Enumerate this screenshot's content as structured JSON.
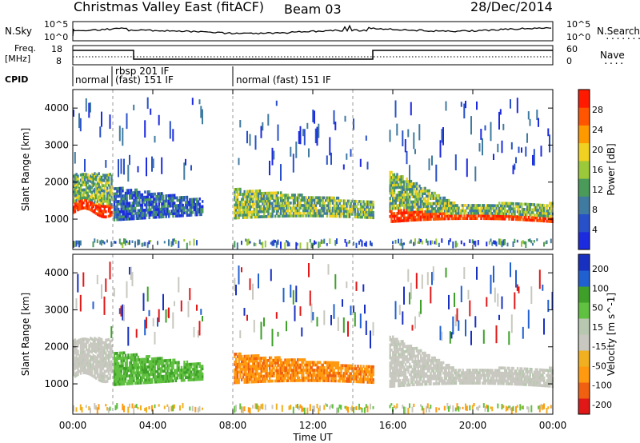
{
  "header": {
    "title": "Christmas Valley East (fitACF)",
    "beam": "Beam 03",
    "date": "28/Dec/2014"
  },
  "colors": {
    "power_scale": [
      "#1d2be0",
      "#2850c8",
      "#3f7aa0",
      "#4a9a5a",
      "#9cc93a",
      "#f0d020",
      "#ff9900",
      "#ff5500",
      "#ff1a00"
    ],
    "velocity_scale": [
      "#e01818",
      "#f06010",
      "#ff9a10",
      "#f0b020",
      "#c8c8c0",
      "#b8c8b0",
      "#60c040",
      "#3ea028",
      "#2060d0",
      "#1830c0"
    ]
  },
  "strip_nsky": {
    "label": "N.Sky",
    "left_top": "10^5",
    "left_bottom": "10^0",
    "right_top": "10^5",
    "right_bottom": "10^0",
    "right_label": "N.Search",
    "right_dots": "........"
  },
  "strip_freq": {
    "label_1": "Freq.",
    "label_2": "[MHz]",
    "left_top": "18",
    "left_bottom": "8",
    "right_top": "60",
    "right_bottom": "0",
    "right_label": "Nave",
    "right_dots": "...."
  },
  "cpid": {
    "label": "CPID",
    "seg1": "normal",
    "seg2_line1": "rbsp 201 IF",
    "seg2_line2": "(fast) 151 IF",
    "seg3": "normal (fast) 151 IF"
  },
  "chart_data": [
    {
      "type": "heatmap",
      "panel": "power",
      "ylabel": "Slant Range [km]",
      "yticks": [
        "1000",
        "2000",
        "3000",
        "4000"
      ],
      "ylim": [
        180,
        4500
      ],
      "xlim": [
        0,
        24
      ],
      "legend_label": "Power [dB]",
      "colorbar_ticks": [
        "28",
        "24",
        "20",
        "16",
        "12",
        "8",
        "4"
      ],
      "colorbar_range": [
        0,
        32
      ],
      "features": [
        {
          "t_range": [
            0.0,
            1.9
          ],
          "range_km": [
            1100,
            2300
          ],
          "power_db": [
            16,
            28
          ]
        },
        {
          "t_range": [
            2.0,
            6.5
          ],
          "range_km": [
            900,
            1700
          ],
          "power_db": [
            4,
            20
          ]
        },
        {
          "t_range": [
            8.0,
            15.0
          ],
          "range_km": [
            1000,
            1800
          ],
          "power_db": [
            8,
            22
          ]
        },
        {
          "t_range": [
            15.8,
            24.0
          ],
          "range_km": [
            900,
            2200
          ],
          "power_db": [
            14,
            30
          ]
        }
      ]
    },
    {
      "type": "heatmap",
      "panel": "velocity",
      "ylabel": "Slant Range [km]",
      "yticks": [
        "1000",
        "2000",
        "3000",
        "4000"
      ],
      "ylim": [
        180,
        4500
      ],
      "xlim": [
        0,
        24
      ],
      "legend_label": "Velocity [m s^-1]",
      "colorbar_ticks": [
        "200",
        "100",
        "50",
        "15",
        "-15",
        "-50",
        "-100",
        "-200"
      ],
      "colorbar_range": [
        -250,
        250
      ],
      "features": [
        {
          "t_range": [
            0.0,
            1.9
          ],
          "range_km": [
            1100,
            2300
          ],
          "velocity_ms": [
            -15,
            15
          ]
        },
        {
          "t_range": [
            2.0,
            6.5
          ],
          "range_km": [
            900,
            1700
          ],
          "velocity_ms": [
            15,
            100
          ]
        },
        {
          "t_range": [
            8.0,
            15.0
          ],
          "range_km": [
            1000,
            1800
          ],
          "velocity_ms": [
            -100,
            -15
          ]
        },
        {
          "t_range": [
            15.8,
            24.0
          ],
          "range_km": [
            900,
            2200
          ],
          "velocity_ms": [
            -15,
            15
          ]
        }
      ]
    }
  ],
  "xaxis": {
    "xlabel": "Time UT",
    "ticks": [
      "00:00",
      "04:00",
      "08:00",
      "12:00",
      "16:00",
      "20:00",
      "00:00"
    ]
  }
}
